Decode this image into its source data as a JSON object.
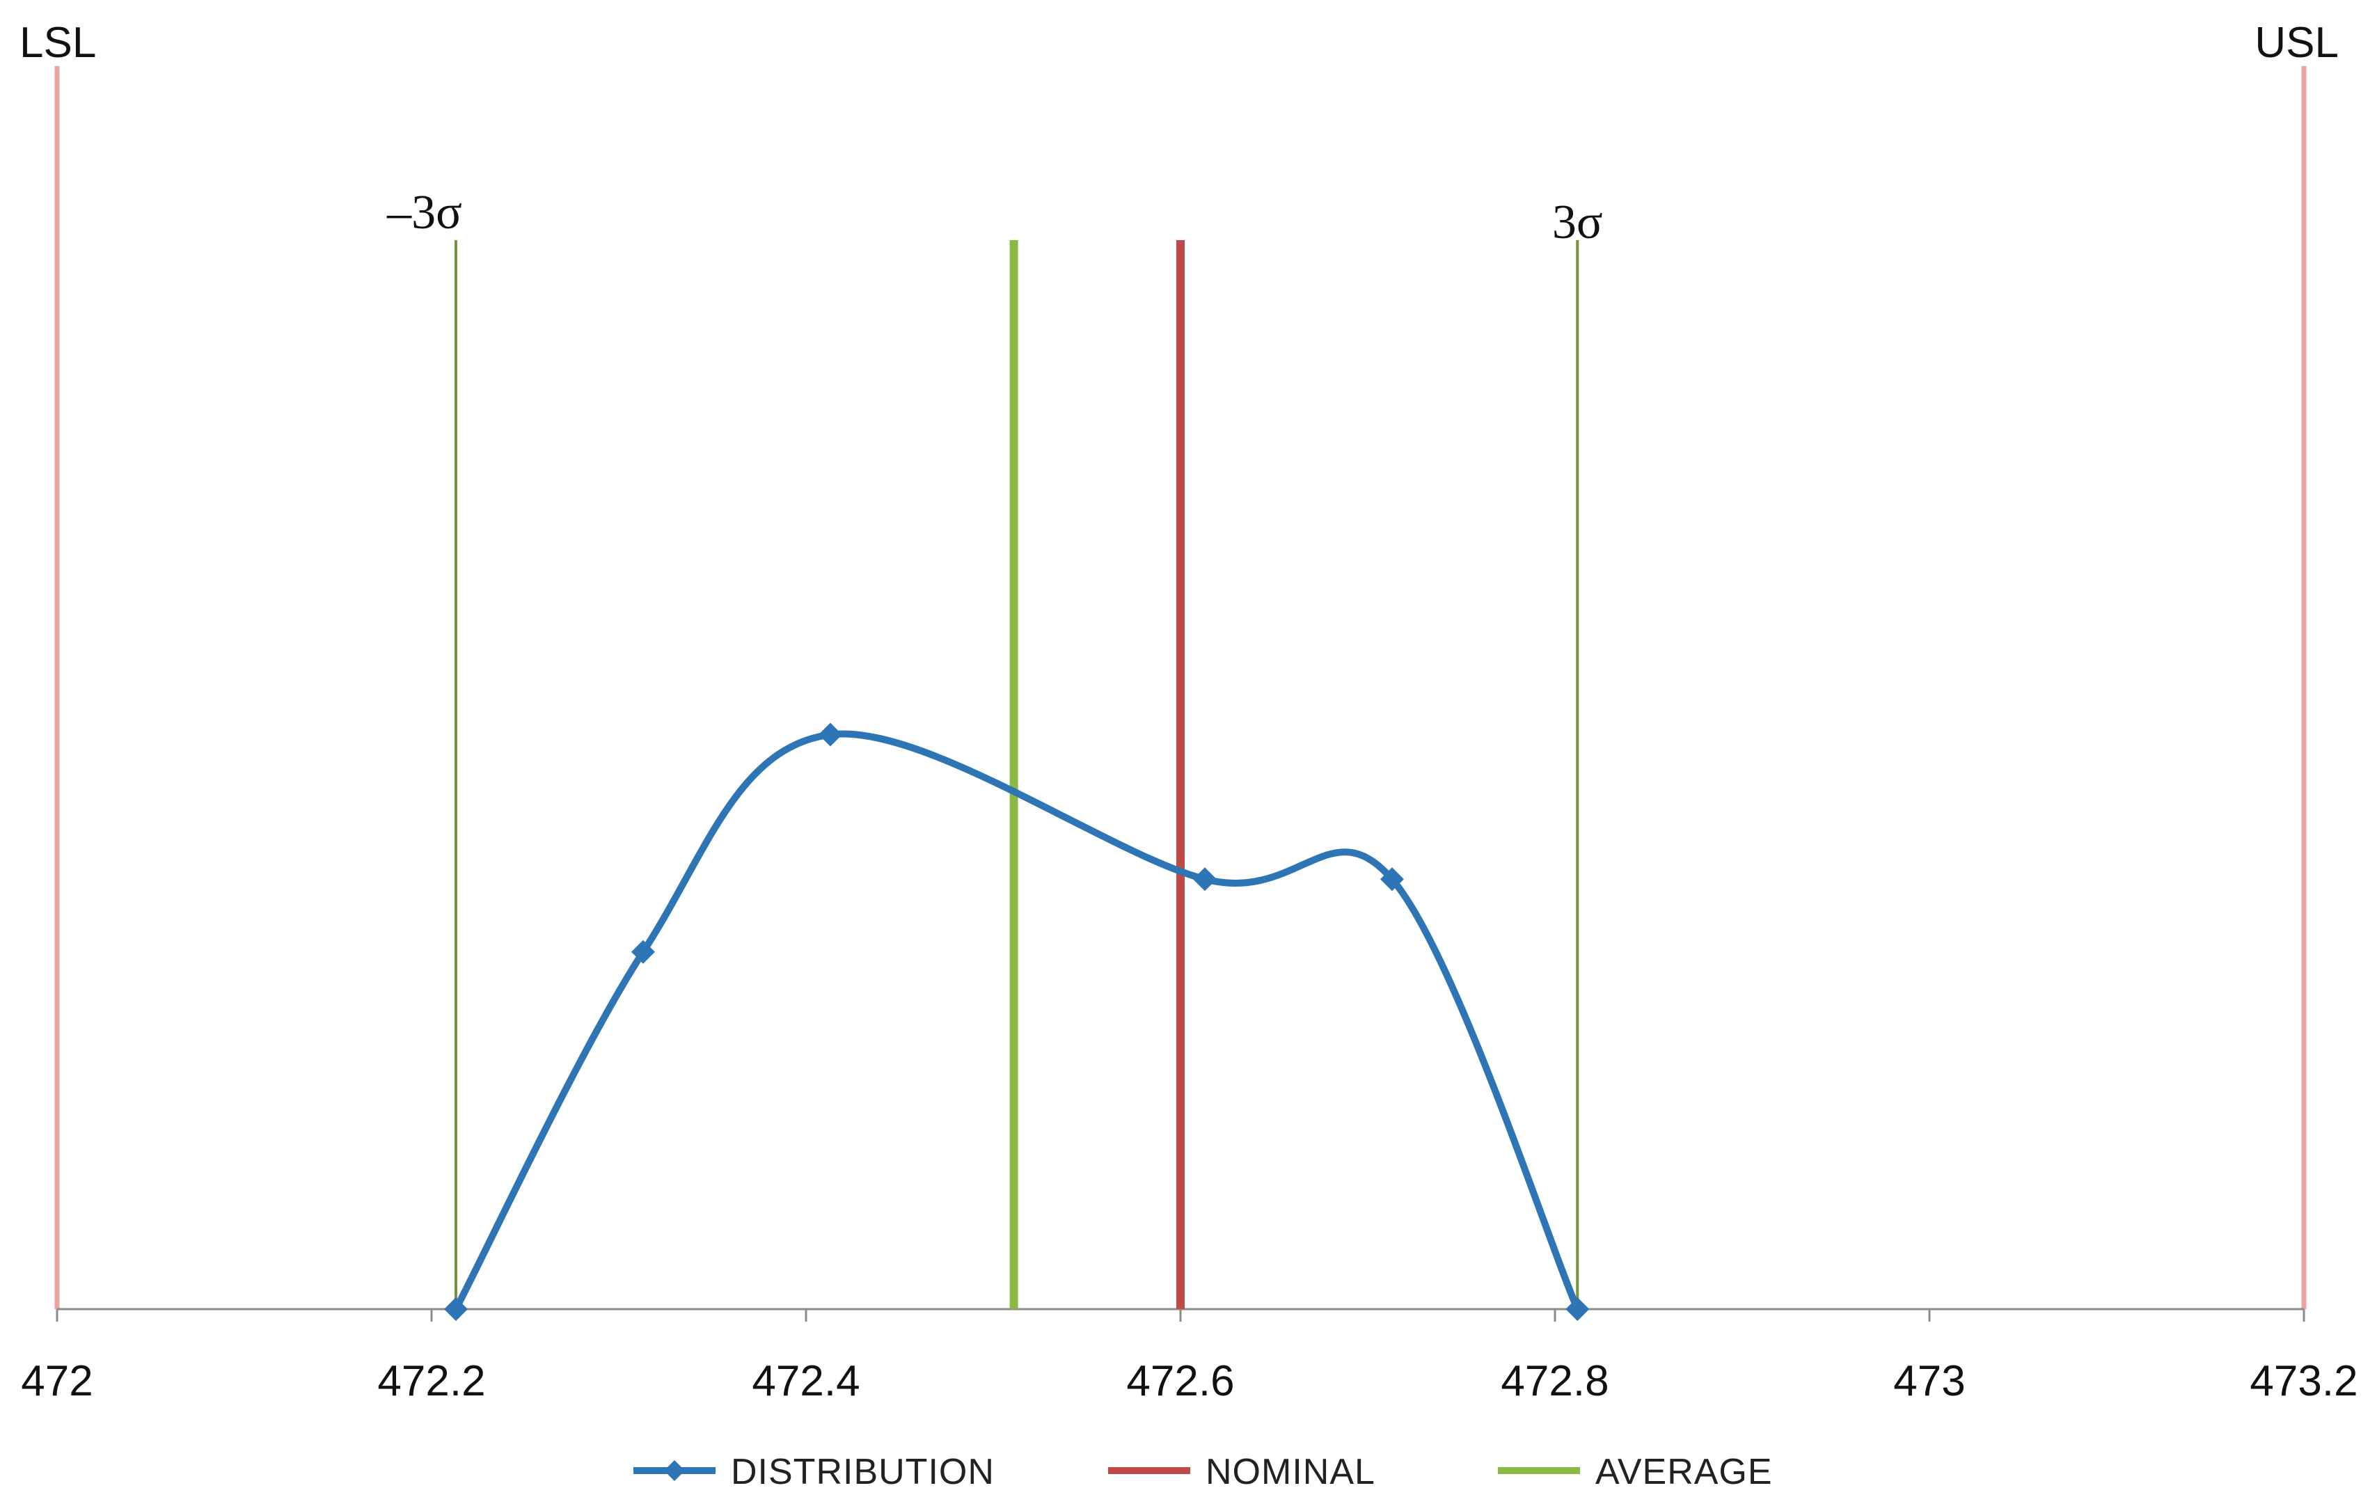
{
  "chart_data": {
    "type": "line",
    "xlim": [
      472,
      473.2
    ],
    "x_ticks": [
      "472",
      "472.2",
      "472.4",
      "472.6",
      "472.8",
      "473",
      "473.2"
    ],
    "x_tick_values": [
      472,
      472.2,
      472.4,
      472.6,
      472.8,
      473,
      473.2
    ],
    "ylim": [
      0,
      1
    ],
    "grid": false,
    "legend_position": "bottom",
    "series": [
      {
        "name": "DISTRIBUTION",
        "color": "#2E75B6",
        "marker": "diamond",
        "smooth": true,
        "x": [
          472.213,
          472.313,
          472.413,
          472.613,
          472.713,
          472.812
        ],
        "y": [
          0,
          0.383,
          0.616,
          0.461,
          0.461,
          0
        ]
      }
    ],
    "reference_lines": [
      {
        "key": "lsl",
        "label": "LSL",
        "x": 472.0,
        "color": "#E8A3A3"
      },
      {
        "key": "usl",
        "label": "USL",
        "x": 473.2,
        "color": "#E8A3A3"
      },
      {
        "key": "minus3sigma",
        "label": "–3σ",
        "x": 472.213,
        "color": "#77933C"
      },
      {
        "key": "plus3sigma",
        "label": "3σ",
        "x": 472.812,
        "color": "#77933C"
      },
      {
        "key": "average",
        "name": "AVERAGE",
        "x": 472.511,
        "color": "#8CB845"
      },
      {
        "key": "nominal",
        "name": "NOMINAL",
        "x": 472.6,
        "color": "#BE4B48"
      }
    ],
    "legend": [
      {
        "label": "DISTRIBUTION",
        "color": "#2E75B6",
        "marker": "diamond"
      },
      {
        "label": "NOMINAL",
        "color": "#BE4B48",
        "marker": "none"
      },
      {
        "label": "AVERAGE",
        "color": "#8CB845",
        "marker": "none"
      }
    ]
  }
}
